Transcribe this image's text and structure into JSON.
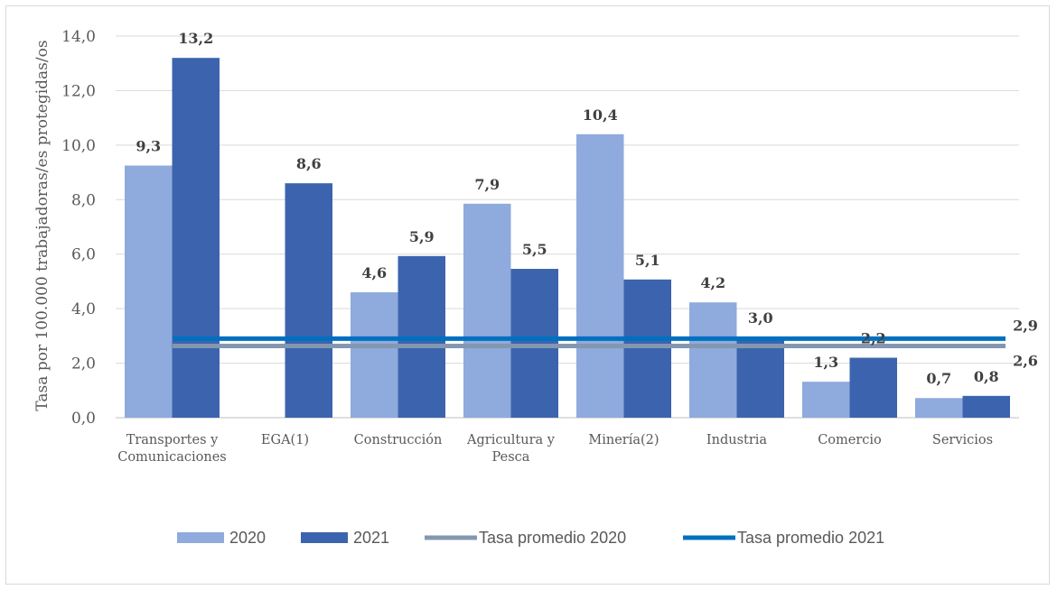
{
  "chart_data": {
    "type": "bar",
    "title": "",
    "xlabel": "",
    "ylabel": "Tasa por 100.000 trabajadoras/es protegidas/os",
    "ylim": [
      0,
      14
    ],
    "yticks": [
      "0,0",
      "2,0",
      "4,0",
      "6,0",
      "8,0",
      "10,0",
      "12,0",
      "14,0"
    ],
    "categories": [
      [
        "Transportes y",
        "Comunicaciones"
      ],
      [
        "EGA(1)"
      ],
      [
        "Construcción"
      ],
      [
        "Agricultura y",
        "Pesca"
      ],
      [
        "Minería(2)"
      ],
      [
        "Industria"
      ],
      [
        "Comercio"
      ],
      [
        "Servicios"
      ]
    ],
    "series": [
      {
        "name": "2020",
        "color": "#8faadc",
        "values": [
          9.25,
          null,
          4.6,
          7.85,
          10.4,
          4.23,
          1.32,
          0.72
        ],
        "labels": [
          "9,3",
          "",
          "4,6",
          "7,9",
          "10,4",
          "4,2",
          "1,3",
          "0,7"
        ]
      },
      {
        "name": "2021",
        "color": "#3c64ae",
        "values": [
          13.2,
          8.6,
          5.93,
          5.46,
          5.07,
          2.95,
          2.2,
          0.8
        ],
        "labels": [
          "13,2",
          "8,6",
          "5,9",
          "5,5",
          "5,1",
          "3,0",
          "2,2",
          "0,8"
        ]
      }
    ],
    "reference_lines": [
      {
        "name": "Tasa promedio 2020",
        "value": 2.63,
        "label": "2,6",
        "color": "#8497b0"
      },
      {
        "name": "Tasa promedio 2021",
        "value": 2.9,
        "label": "2,9",
        "color": "#0070c0"
      }
    ],
    "grid": true,
    "legend_position": "bottom"
  }
}
